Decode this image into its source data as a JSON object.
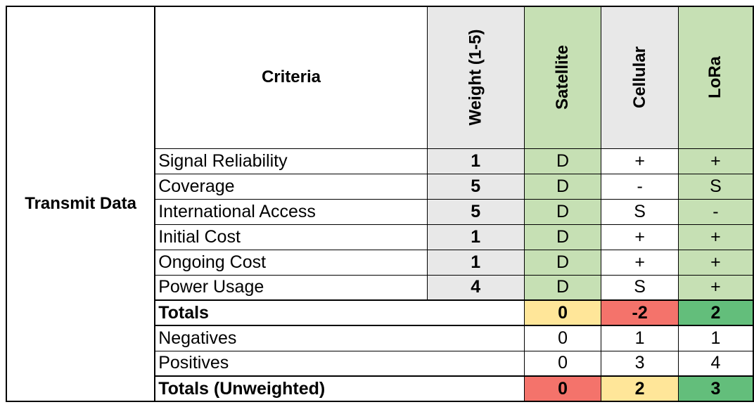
{
  "group_label": "Transmit Data",
  "headers": {
    "criteria": "Criteria",
    "weight": "Weight (1-5)",
    "options": [
      "Satellite",
      "Cellular",
      "LoRa"
    ]
  },
  "criteria_rows": [
    {
      "name": "Signal Reliability",
      "weight": "1",
      "scores": [
        "D",
        "+",
        "+"
      ]
    },
    {
      "name": "Coverage",
      "weight": "5",
      "scores": [
        "D",
        "-",
        "S"
      ]
    },
    {
      "name": "International Access",
      "weight": "5",
      "scores": [
        "D",
        "S",
        "-"
      ]
    },
    {
      "name": "Initial Cost",
      "weight": "1",
      "scores": [
        "D",
        "+",
        "+"
      ]
    },
    {
      "name": "Ongoing Cost",
      "weight": "1",
      "scores": [
        "D",
        "+",
        "+"
      ]
    },
    {
      "name": "Power Usage",
      "weight": "4",
      "scores": [
        "D",
        "S",
        "+"
      ]
    }
  ],
  "totals": {
    "label": "Totals",
    "values": [
      "0",
      "-2",
      "2"
    ]
  },
  "negatives": {
    "label": "Negatives",
    "values": [
      "0",
      "1",
      "1"
    ]
  },
  "positives": {
    "label": "Positives",
    "values": [
      "0",
      "3",
      "4"
    ]
  },
  "totals_unweighted": {
    "label": "Totals (Unweighted)",
    "values": [
      "0",
      "2",
      "3"
    ]
  },
  "colors": {
    "grey": "#e8e8e8",
    "light_green": "#c6e0b4",
    "yellow": "#ffe699",
    "red": "#f4736b",
    "green": "#63be7b"
  }
}
